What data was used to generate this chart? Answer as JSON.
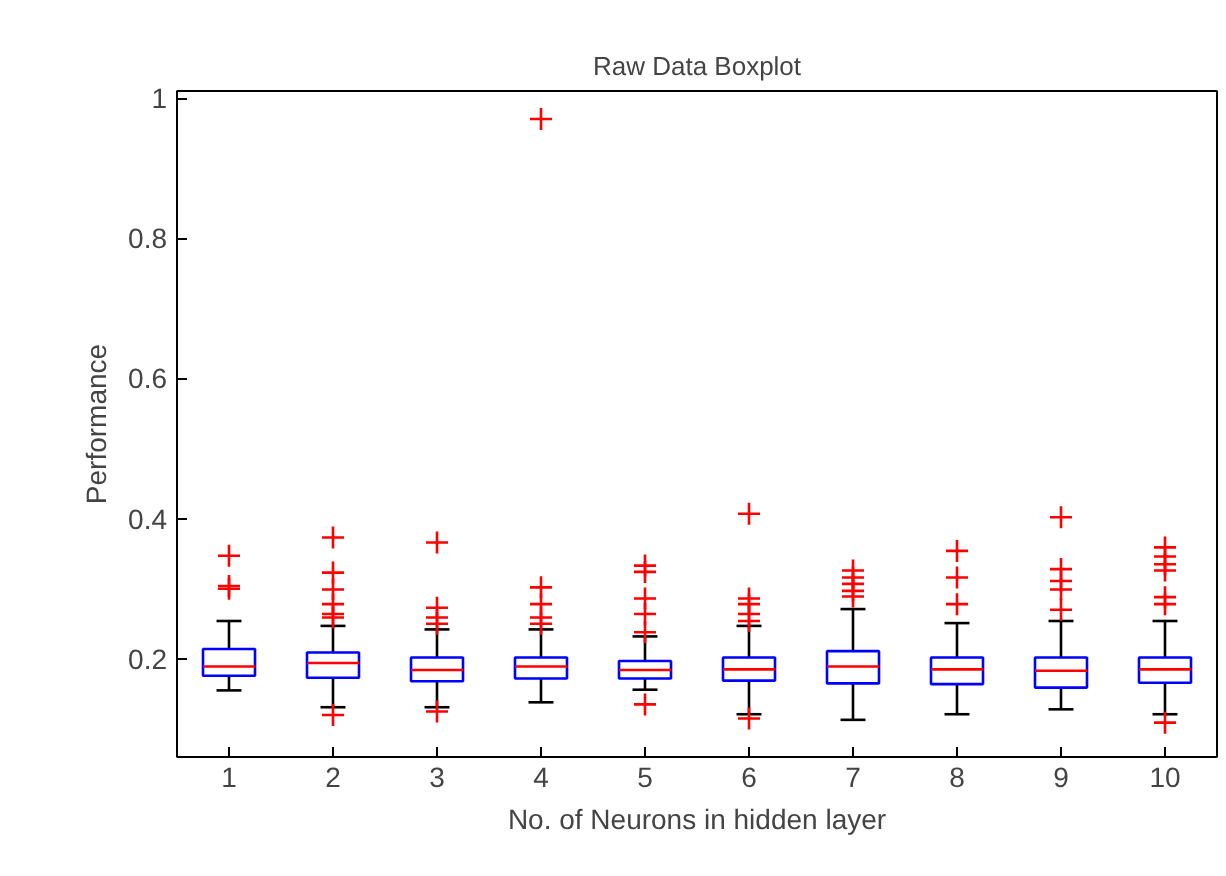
{
  "chart_data": {
    "type": "box",
    "title": "Raw Data Boxplot",
    "xlabel": "No. of Neurons in hidden layer",
    "ylabel": "Performance",
    "categories": [
      "1",
      "2",
      "3",
      "4",
      "5",
      "6",
      "7",
      "8",
      "9",
      "10"
    ],
    "boxes": [
      {
        "low": 0.155,
        "q1": 0.176,
        "median": 0.189,
        "q3": 0.214,
        "high": 0.254,
        "outliers": [
          0.3,
          0.304,
          0.347
        ]
      },
      {
        "low": 0.131,
        "q1": 0.173,
        "median": 0.194,
        "q3": 0.209,
        "high": 0.247,
        "outliers": [
          0.12,
          0.259,
          0.264,
          0.278,
          0.299,
          0.323,
          0.373
        ]
      },
      {
        "low": 0.131,
        "q1": 0.168,
        "median": 0.184,
        "q3": 0.202,
        "high": 0.242,
        "outliers": [
          0.125,
          0.25,
          0.259,
          0.273,
          0.366
        ]
      },
      {
        "low": 0.138,
        "q1": 0.172,
        "median": 0.189,
        "q3": 0.202,
        "high": 0.242,
        "outliers": [
          0.25,
          0.259,
          0.278,
          0.302,
          0.97
        ]
      },
      {
        "low": 0.156,
        "q1": 0.172,
        "median": 0.184,
        "q3": 0.197,
        "high": 0.232,
        "outliers": [
          0.135,
          0.238,
          0.264,
          0.286,
          0.324,
          0.333
        ]
      },
      {
        "low": 0.121,
        "q1": 0.169,
        "median": 0.185,
        "q3": 0.202,
        "high": 0.247,
        "outliers": [
          0.115,
          0.254,
          0.264,
          0.278,
          0.286,
          0.407
        ]
      },
      {
        "low": 0.113,
        "q1": 0.165,
        "median": 0.189,
        "q3": 0.211,
        "high": 0.271,
        "outliers": [
          0.289,
          0.297,
          0.307,
          0.316,
          0.326
        ]
      },
      {
        "low": 0.121,
        "q1": 0.164,
        "median": 0.185,
        "q3": 0.202,
        "high": 0.251,
        "outliers": [
          0.278,
          0.316,
          0.354
        ]
      },
      {
        "low": 0.128,
        "q1": 0.159,
        "median": 0.183,
        "q3": 0.202,
        "high": 0.254,
        "outliers": [
          0.27,
          0.299,
          0.311,
          0.328,
          0.402
        ]
      },
      {
        "low": 0.121,
        "q1": 0.166,
        "median": 0.185,
        "q3": 0.202,
        "high": 0.254,
        "outliers": [
          0.109,
          0.278,
          0.288,
          0.326,
          0.335,
          0.346,
          0.359
        ]
      }
    ],
    "ylim": [
      0.06,
      1.01
    ],
    "yticks": [
      0.2,
      0.4,
      0.6,
      0.8,
      1
    ],
    "grid": false
  }
}
